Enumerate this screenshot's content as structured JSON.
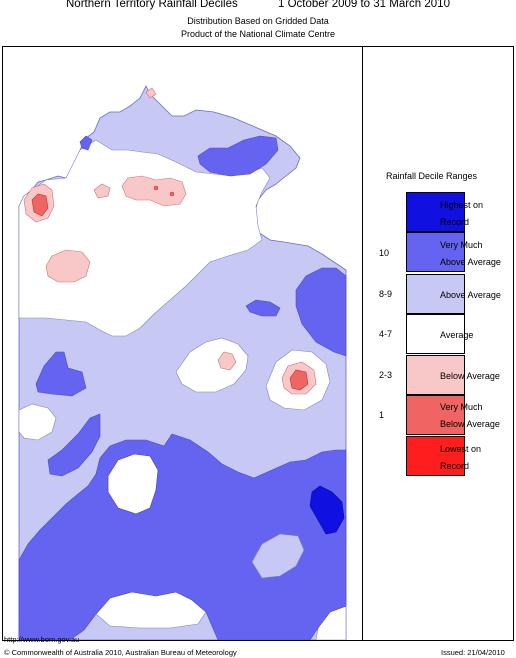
{
  "header": {
    "title_left": "Northern Territory Rainfall Deciles",
    "title_right": "1 October 2009 to 31 March 2010",
    "subtitle1": "Distribution Based on Gridded Data",
    "subtitle2": "Product of the National Climate Centre"
  },
  "legend": {
    "title": "Rainfall Decile Ranges",
    "items": [
      {
        "label1": "Highest on",
        "label2": "Record",
        "range": "",
        "color": "#1010e0"
      },
      {
        "label1": "Very Much",
        "label2": "Above Average",
        "range": "10",
        "color": "#6464f0"
      },
      {
        "label1": "Above Average",
        "label2": "",
        "range": "8-9",
        "color": "#c8c8f4"
      },
      {
        "label1": "Average",
        "label2": "",
        "range": "4-7",
        "color": "#ffffff"
      },
      {
        "label1": "Below Average",
        "label2": "",
        "range": "2-3",
        "color": "#f8c8c8"
      },
      {
        "label1": "Very Much",
        "label2": "Below Average",
        "range": "1",
        "color": "#f06464"
      },
      {
        "label1": "Lowest on",
        "label2": "Record",
        "range": "",
        "color": "#ff1e1e"
      }
    ]
  },
  "footer": {
    "url": "http://www.bom.gov.au",
    "copyright": "© Commonwealth of Australia 2010, Australian Bureau of Meteorology",
    "issued": "Issued: 21/04/2010"
  },
  "colors": {
    "above": "#c8c8f4",
    "very_much_above": "#6464f0",
    "highest": "#1010e0",
    "below": "#f8c8c8",
    "very_much_below": "#f06464",
    "outline": "#8080d0"
  }
}
